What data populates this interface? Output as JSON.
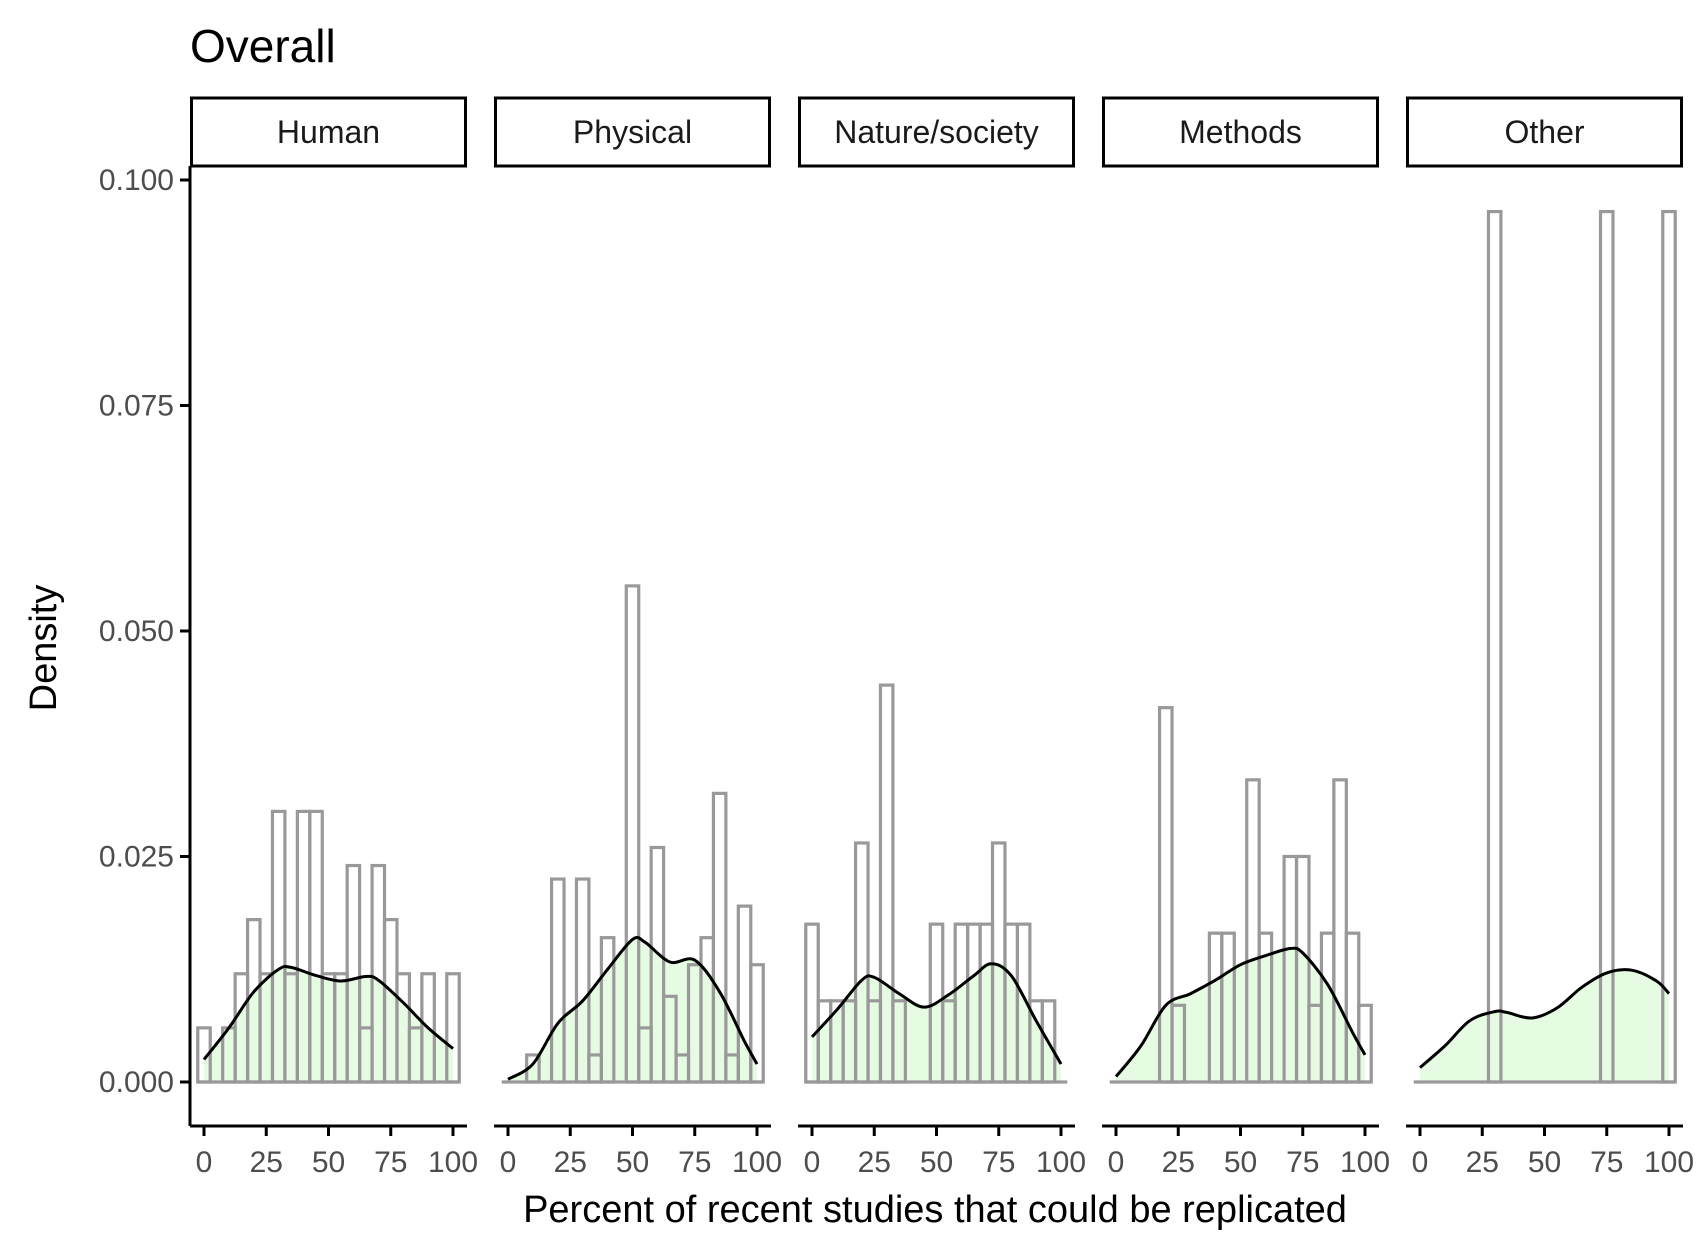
{
  "chart_data": {
    "type": "histogram-density",
    "title": "Overall",
    "xlabel": "Percent of recent studies that could be replicated",
    "ylabel": "Density",
    "xlim": [
      0,
      100
    ],
    "ylim": [
      0,
      0.1
    ],
    "x_ticks": [
      "0",
      "25",
      "50",
      "75",
      "100"
    ],
    "y_ticks": [
      "0.000",
      "0.025",
      "0.050",
      "0.075",
      "0.100"
    ],
    "y_tick_values": [
      0,
      0.025,
      0.05,
      0.075,
      0.1
    ],
    "x_tick_values": [
      0,
      25,
      50,
      75,
      100
    ],
    "bin_width": 5,
    "grid": false,
    "colors": {
      "bar_outline": "#999999",
      "density_fill": "#e6fce2",
      "density_line": "#000000",
      "axis": "#000000"
    },
    "panels": [
      {
        "name": "Human",
        "bins": [
          {
            "x": 0,
            "density": 0.006
          },
          {
            "x": 5,
            "density": 0.0
          },
          {
            "x": 10,
            "density": 0.006
          },
          {
            "x": 15,
            "density": 0.012
          },
          {
            "x": 20,
            "density": 0.018
          },
          {
            "x": 25,
            "density": 0.012
          },
          {
            "x": 30,
            "density": 0.03
          },
          {
            "x": 35,
            "density": 0.012
          },
          {
            "x": 40,
            "density": 0.03
          },
          {
            "x": 45,
            "density": 0.03
          },
          {
            "x": 50,
            "density": 0.012
          },
          {
            "x": 55,
            "density": 0.012
          },
          {
            "x": 60,
            "density": 0.024
          },
          {
            "x": 65,
            "density": 0.006
          },
          {
            "x": 70,
            "density": 0.024
          },
          {
            "x": 75,
            "density": 0.018
          },
          {
            "x": 80,
            "density": 0.012
          },
          {
            "x": 85,
            "density": 0.006
          },
          {
            "x": 90,
            "density": 0.012
          },
          {
            "x": 95,
            "density": 0.0
          },
          {
            "x": 100,
            "density": 0.012
          }
        ],
        "density": [
          [
            0,
            0.0025
          ],
          [
            10,
            0.006
          ],
          [
            20,
            0.01
          ],
          [
            30,
            0.0125
          ],
          [
            35,
            0.0127
          ],
          [
            45,
            0.0118
          ],
          [
            55,
            0.0112
          ],
          [
            65,
            0.0117
          ],
          [
            70,
            0.0113
          ],
          [
            80,
            0.0088
          ],
          [
            90,
            0.006
          ],
          [
            100,
            0.0037
          ]
        ]
      },
      {
        "name": "Physical",
        "bins": [
          {
            "x": 0,
            "density": 0.0
          },
          {
            "x": 5,
            "density": 0.0
          },
          {
            "x": 10,
            "density": 0.003
          },
          {
            "x": 15,
            "density": 0.0
          },
          {
            "x": 20,
            "density": 0.0225
          },
          {
            "x": 25,
            "density": 0.0
          },
          {
            "x": 30,
            "density": 0.0225
          },
          {
            "x": 35,
            "density": 0.003
          },
          {
            "x": 40,
            "density": 0.016
          },
          {
            "x": 45,
            "density": 0.0
          },
          {
            "x": 50,
            "density": 0.055
          },
          {
            "x": 55,
            "density": 0.006
          },
          {
            "x": 60,
            "density": 0.026
          },
          {
            "x": 65,
            "density": 0.0095
          },
          {
            "x": 70,
            "density": 0.003
          },
          {
            "x": 75,
            "density": 0.013
          },
          {
            "x": 80,
            "density": 0.016
          },
          {
            "x": 85,
            "density": 0.032
          },
          {
            "x": 90,
            "density": 0.003
          },
          {
            "x": 95,
            "density": 0.0195
          },
          {
            "x": 100,
            "density": 0.013
          }
        ],
        "density": [
          [
            0,
            0.0003
          ],
          [
            10,
            0.002
          ],
          [
            20,
            0.0065
          ],
          [
            30,
            0.009
          ],
          [
            40,
            0.0125
          ],
          [
            50,
            0.0158
          ],
          [
            55,
            0.0155
          ],
          [
            65,
            0.0133
          ],
          [
            75,
            0.0135
          ],
          [
            85,
            0.01
          ],
          [
            95,
            0.0045
          ],
          [
            100,
            0.002
          ]
        ]
      },
      {
        "name": "Nature/society",
        "bins": [
          {
            "x": 0,
            "density": 0.0175
          },
          {
            "x": 5,
            "density": 0.009
          },
          {
            "x": 10,
            "density": 0.009
          },
          {
            "x": 15,
            "density": 0.009
          },
          {
            "x": 20,
            "density": 0.0265
          },
          {
            "x": 25,
            "density": 0.009
          },
          {
            "x": 30,
            "density": 0.044
          },
          {
            "x": 35,
            "density": 0.009
          },
          {
            "x": 40,
            "density": 0.0
          },
          {
            "x": 45,
            "density": 0.0
          },
          {
            "x": 50,
            "density": 0.0175
          },
          {
            "x": 55,
            "density": 0.009
          },
          {
            "x": 60,
            "density": 0.0175
          },
          {
            "x": 65,
            "density": 0.0175
          },
          {
            "x": 70,
            "density": 0.0175
          },
          {
            "x": 75,
            "density": 0.0265
          },
          {
            "x": 80,
            "density": 0.0175
          },
          {
            "x": 85,
            "density": 0.0175
          },
          {
            "x": 90,
            "density": 0.009
          },
          {
            "x": 95,
            "density": 0.009
          },
          {
            "x": 100,
            "density": 0.0
          }
        ],
        "density": [
          [
            0,
            0.005
          ],
          [
            10,
            0.008
          ],
          [
            20,
            0.0113
          ],
          [
            25,
            0.0116
          ],
          [
            35,
            0.0098
          ],
          [
            45,
            0.0083
          ],
          [
            55,
            0.0097
          ],
          [
            65,
            0.0118
          ],
          [
            72,
            0.0131
          ],
          [
            80,
            0.0118
          ],
          [
            90,
            0.0068
          ],
          [
            100,
            0.002
          ]
        ]
      },
      {
        "name": "Methods",
        "bins": [
          {
            "x": 0,
            "density": 0.0
          },
          {
            "x": 5,
            "density": 0.0
          },
          {
            "x": 10,
            "density": 0.0
          },
          {
            "x": 15,
            "density": 0.0
          },
          {
            "x": 20,
            "density": 0.0415
          },
          {
            "x": 25,
            "density": 0.0085
          },
          {
            "x": 30,
            "density": 0.0
          },
          {
            "x": 35,
            "density": 0.0
          },
          {
            "x": 40,
            "density": 0.0165
          },
          {
            "x": 45,
            "density": 0.0165
          },
          {
            "x": 50,
            "density": 0.0
          },
          {
            "x": 55,
            "density": 0.0335
          },
          {
            "x": 60,
            "density": 0.0165
          },
          {
            "x": 65,
            "density": 0.0
          },
          {
            "x": 70,
            "density": 0.025
          },
          {
            "x": 75,
            "density": 0.025
          },
          {
            "x": 80,
            "density": 0.0085
          },
          {
            "x": 85,
            "density": 0.0165
          },
          {
            "x": 90,
            "density": 0.0335
          },
          {
            "x": 95,
            "density": 0.0165
          },
          {
            "x": 100,
            "density": 0.0085
          }
        ],
        "density": [
          [
            0,
            0.0006
          ],
          [
            10,
            0.004
          ],
          [
            20,
            0.0085
          ],
          [
            30,
            0.0098
          ],
          [
            40,
            0.0113
          ],
          [
            50,
            0.013
          ],
          [
            60,
            0.014
          ],
          [
            70,
            0.0148
          ],
          [
            75,
            0.0143
          ],
          [
            85,
            0.0108
          ],
          [
            95,
            0.0055
          ],
          [
            100,
            0.003
          ]
        ]
      },
      {
        "name": "Other",
        "bins": [
          {
            "x": 30,
            "density": 0.0965
          },
          {
            "x": 75,
            "density": 0.0965
          },
          {
            "x": 100,
            "density": 0.0965
          }
        ],
        "density": [
          [
            0,
            0.0016
          ],
          [
            10,
            0.004
          ],
          [
            20,
            0.0068
          ],
          [
            30,
            0.0078
          ],
          [
            35,
            0.0077
          ],
          [
            45,
            0.0071
          ],
          [
            55,
            0.0082
          ],
          [
            65,
            0.0105
          ],
          [
            75,
            0.0121
          ],
          [
            85,
            0.0124
          ],
          [
            95,
            0.0112
          ],
          [
            100,
            0.0098
          ]
        ]
      }
    ]
  }
}
